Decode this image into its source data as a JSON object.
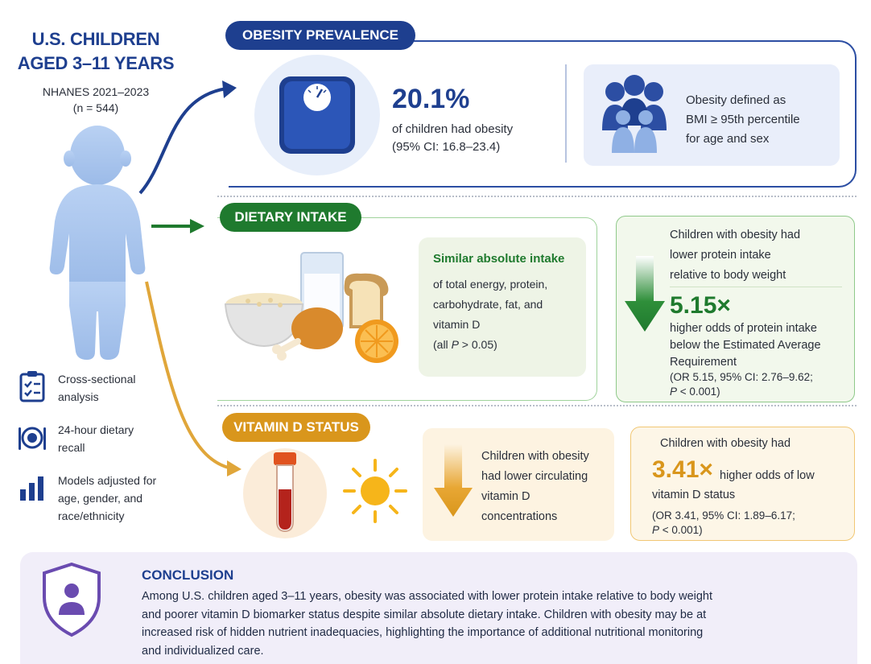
{
  "left": {
    "title_line1": "U.S. CHILDREN",
    "title_line2": "AGED 3–11 YEARS",
    "survey": "NHANES 2021–2023",
    "n": "(n = 544)",
    "methods": [
      {
        "icon": "clipboard-checklist-icon",
        "line1": "Cross-sectional",
        "line2": "analysis",
        "line3": ""
      },
      {
        "icon": "plate-utensils-icon",
        "line1": "24-hour dietary",
        "line2": "recall",
        "line3": ""
      },
      {
        "icon": "bar-chart-icon",
        "line1": "Models adjusted for",
        "line2": "age, gender, and",
        "line3": "race/ethnicity"
      }
    ]
  },
  "obesity": {
    "tab": "OBESITY PREVALENCE",
    "icon": "weight-scale-icon",
    "stat": "20.1%",
    "desc": "of children had obesity",
    "ci": "(95% CI: 16.8–23.4)",
    "def_icon": "family-group-icon",
    "def_line1": "Obesity defined as",
    "def_line2": "BMI ≥ 95th percentile",
    "def_line3": "for age and sex"
  },
  "dietary": {
    "tab": "DIETARY INTAKE",
    "food_icon": "food-group-icon",
    "similar_head": "Similar absolute intake",
    "similar_lines": [
      "of total energy, protein,",
      "carbohydrate, fat, and",
      "vitamin D"
    ],
    "similar_p_prefix": "(all ",
    "similar_p_italic": "P",
    "similar_p_suffix": " > 0.05)",
    "protein_head_lines": [
      "Children with obesity had",
      "lower protein intake",
      "relative to body weight"
    ],
    "odds": "5.15×",
    "odds_lines": [
      "higher odds of protein intake",
      "below the Estimated Average",
      "Requirement"
    ],
    "or_line1": "(OR 5.15, 95% CI: 2.76–9.62;",
    "or_p_italic": "P",
    "or_p_suffix": " < 0.001)",
    "arrow_icon": "down-arrow-green-icon"
  },
  "vitd": {
    "tab": "VITAMIN D STATUS",
    "tube_icon": "blood-tube-icon",
    "sun_icon": "sun-icon",
    "arrow_icon": "down-arrow-orange-icon",
    "lower_lines": [
      "Children with obesity",
      "had lower circulating",
      "vitamin D",
      "concentrations"
    ],
    "odds_head": "Children with obesity had",
    "odds": "3.41×",
    "odds_text1": "higher odds of low",
    "odds_text2": "vitamin D status",
    "or_line1": "(OR 3.41, 95% CI: 1.89–6.17;",
    "or_p_italic": "P",
    "or_p_suffix": " < 0.001)"
  },
  "conclusion": {
    "icon": "shield-person-icon",
    "title": "CONCLUSION",
    "lines": [
      "Among U.S. children aged 3–11 years, obesity was associated with lower protein intake relative to body weight",
      "and poorer vitamin D biomarker status despite similar absolute dietary intake. Children with obesity may be at",
      "increased risk of hidden nutrient inadequacies, highlighting the importance of additional nutritional monitoring",
      "and individualized care."
    ]
  },
  "colors": {
    "blue": "#1e3f8f",
    "green": "#1f7a2e",
    "orange": "#d9961c",
    "child": "#a9c4ec"
  }
}
